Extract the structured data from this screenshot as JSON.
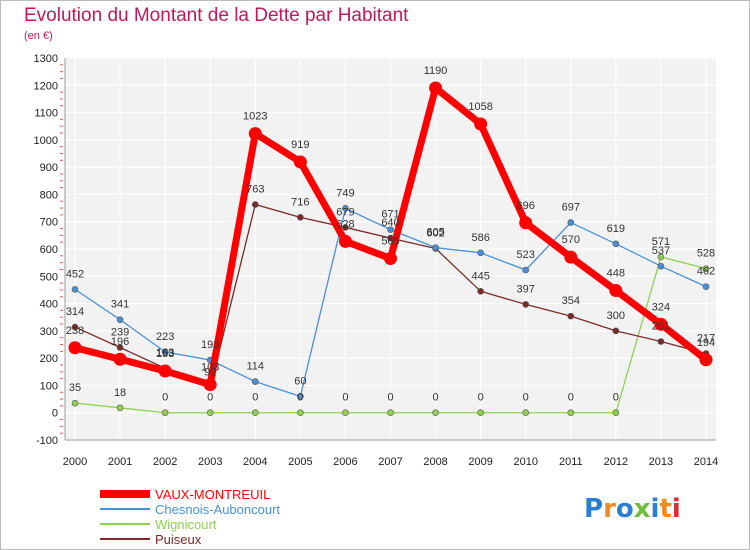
{
  "chart_data": {
    "type": "line",
    "title": "Evolution du Montant de la Dette par Habitant",
    "subtitle": "(en €)",
    "x": [
      "2000",
      "2001",
      "2002",
      "2003",
      "2004",
      "2005",
      "2006",
      "2007",
      "2008",
      "2009",
      "2010",
      "2011",
      "2012",
      "2013",
      "2014"
    ],
    "yticks": [
      "-100",
      "0",
      "100",
      "200",
      "300",
      "400",
      "500",
      "600",
      "700",
      "800",
      "900",
      "1000",
      "1100",
      "1200",
      "1300"
    ],
    "ylim": [
      -100,
      1300
    ],
    "grid": true,
    "legend_position": "bottom-left",
    "series": [
      {
        "name": "VAUX-MONTREUIL",
        "color": "#ff0000",
        "values": [
          238,
          196,
          153,
          103,
          1023,
          919,
          628,
          565,
          1190,
          1058,
          696,
          570,
          448,
          324,
          194
        ],
        "labels": [
          "238",
          "196",
          "153",
          "103",
          "1023",
          "919",
          "628",
          "565",
          "1190",
          "1058",
          "696",
          "570",
          "448",
          "324",
          "194"
        ]
      },
      {
        "name": "Chesnois-Auboncourt",
        "color": "#4a90d9",
        "values": [
          452,
          341,
          223,
          193,
          114,
          60,
          749,
          671,
          605,
          586,
          523,
          697,
          619,
          537,
          462
        ],
        "labels": [
          "452",
          "341",
          "223",
          "193",
          "114",
          "60",
          "749",
          "671",
          "605",
          "586",
          "523",
          "697",
          "619",
          "537",
          "462"
        ]
      },
      {
        "name": "Wignicourt",
        "color": "#8fd14f",
        "values": [
          35,
          18,
          0,
          0,
          0,
          0,
          0,
          0,
          0,
          0,
          0,
          0,
          0,
          571,
          528
        ],
        "labels": [
          "35",
          "18",
          "0",
          "0",
          "0",
          "0",
          "0",
          "0",
          "0",
          "0",
          "0",
          "0",
          "0",
          "571",
          "528"
        ]
      },
      {
        "name": "Puiseux",
        "color": "#7a2a2a",
        "values": [
          314,
          239,
          163,
          92,
          763,
          716,
          679,
          640,
          602,
          445,
          397,
          354,
          300,
          261,
          217
        ],
        "labels": [
          "314",
          "239",
          "163",
          "92",
          "763",
          "716",
          "679",
          "640",
          "602",
          "445",
          "397",
          "354",
          "300",
          "261",
          "217"
        ]
      }
    ]
  },
  "logo": {
    "text": "Proxiti",
    "letter_colors": [
      "#2a7fd4",
      "#f08a24",
      "#2a7fd4",
      "#6cbf3c",
      "#2a7fd4",
      "#f08a24",
      "#d43030"
    ]
  }
}
